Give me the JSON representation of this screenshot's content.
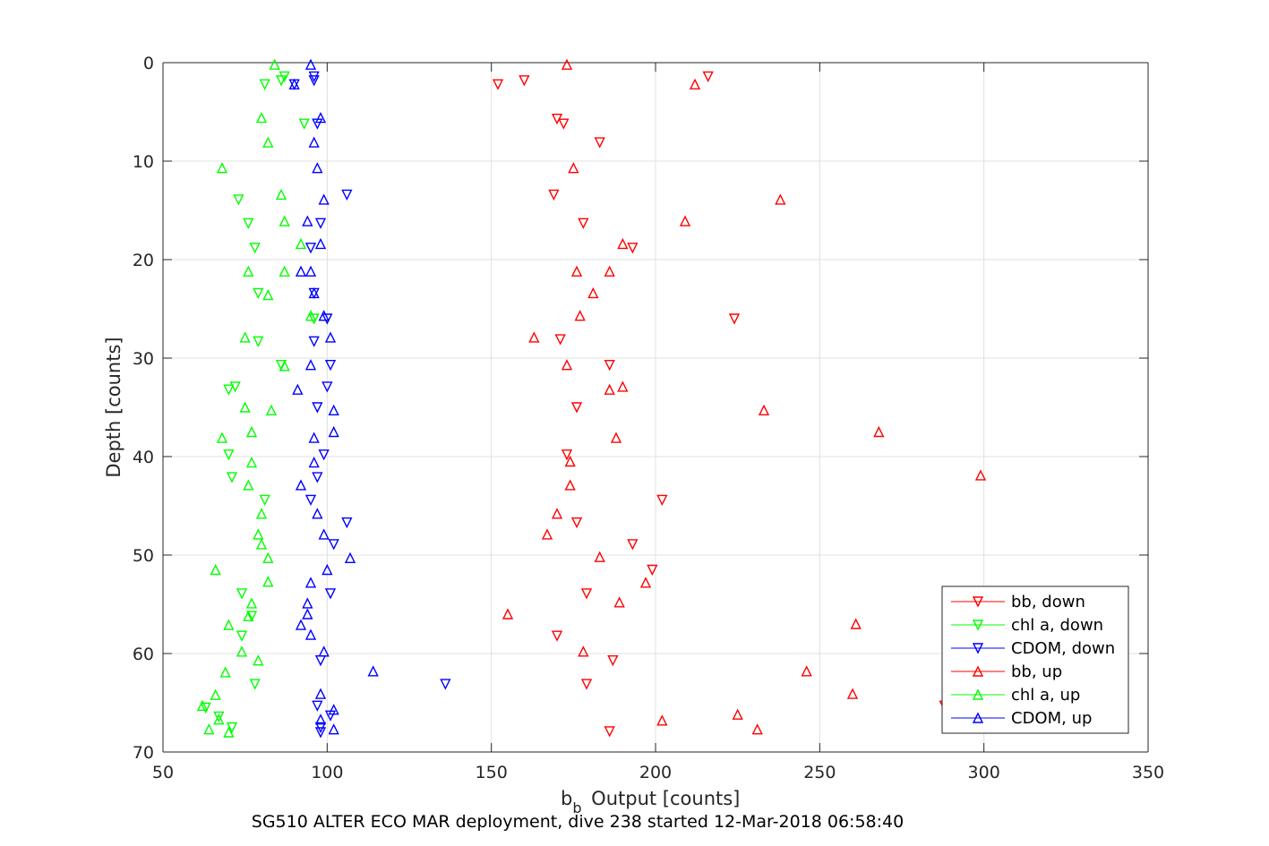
{
  "chart_data": {
    "type": "scatter",
    "title": "",
    "caption": "SG510 ALTER ECO MAR deployment, dive 238 started 12-Mar-2018 06:58:40",
    "xlabel_main": "b",
    "xlabel_sub": "b",
    "xlabel_rest": " Output [counts]",
    "ylabel": "Depth [counts]",
    "xlim": [
      50,
      350
    ],
    "ylim": [
      0,
      70
    ],
    "y_reversed": true,
    "grid": true,
    "legend_position": "bottom-right",
    "xticks": [
      50,
      100,
      150,
      200,
      250,
      300,
      350
    ],
    "yticks": [
      0,
      10,
      20,
      30,
      40,
      50,
      60,
      70
    ],
    "series": [
      {
        "name": "bb, down",
        "color": "#ff0000",
        "marker": "triangle-down",
        "points": [
          [
            216,
            1.4
          ],
          [
            160,
            1.8
          ],
          [
            152,
            2.2
          ],
          [
            170,
            5.7
          ],
          [
            172,
            6.2
          ],
          [
            183,
            8.1
          ],
          [
            169,
            13.4
          ],
          [
            178,
            16.3
          ],
          [
            193,
            18.8
          ],
          [
            224,
            26
          ],
          [
            171,
            28.1
          ],
          [
            186,
            30.7
          ],
          [
            176,
            35
          ],
          [
            173,
            39.8
          ],
          [
            202,
            44.4
          ],
          [
            176,
            46.7
          ],
          [
            193,
            48.9
          ],
          [
            199,
            51.5
          ],
          [
            179,
            53.9
          ],
          [
            170,
            58.2
          ],
          [
            187,
            60.7
          ],
          [
            179,
            63.1
          ],
          [
            288,
            65.3
          ],
          [
            186,
            67.9
          ]
        ]
      },
      {
        "name": "chl a, down",
        "color": "#00ff00",
        "marker": "triangle-down",
        "points": [
          [
            87,
            1.4
          ],
          [
            86,
            1.8
          ],
          [
            81,
            2.2
          ],
          [
            93,
            6.2
          ],
          [
            73,
            13.9
          ],
          [
            76,
            16.3
          ],
          [
            78,
            18.8
          ],
          [
            79,
            23.4
          ],
          [
            96,
            26
          ],
          [
            79,
            28.3
          ],
          [
            86,
            30.7
          ],
          [
            72,
            32.9
          ],
          [
            70,
            33.2
          ],
          [
            70,
            39.8
          ],
          [
            71,
            42.1
          ],
          [
            81,
            44.4
          ],
          [
            74,
            53.9
          ],
          [
            77,
            56.2
          ],
          [
            74,
            58.2
          ],
          [
            78,
            63.1
          ],
          [
            63,
            65.5
          ],
          [
            67,
            66.4
          ],
          [
            71,
            67.5
          ]
        ]
      },
      {
        "name": "CDOM, down",
        "color": "#0000ff",
        "marker": "triangle-down",
        "points": [
          [
            96,
            1.4
          ],
          [
            96,
            1.8
          ],
          [
            90,
            2.2
          ],
          [
            97,
            6.2
          ],
          [
            106,
            13.4
          ],
          [
            98,
            16.3
          ],
          [
            95,
            18.8
          ],
          [
            96,
            23.4
          ],
          [
            100,
            26
          ],
          [
            96,
            28.3
          ],
          [
            101,
            30.7
          ],
          [
            100,
            32.9
          ],
          [
            97,
            35
          ],
          [
            99,
            39.8
          ],
          [
            97,
            42.1
          ],
          [
            95,
            44.4
          ],
          [
            106,
            46.7
          ],
          [
            102,
            48.9
          ],
          [
            101,
            53.9
          ],
          [
            98,
            60.7
          ],
          [
            136,
            63.1
          ],
          [
            97,
            65.3
          ],
          [
            101,
            66.3
          ],
          [
            98,
            67.5
          ],
          [
            98,
            68
          ]
        ]
      },
      {
        "name": "bb, up",
        "color": "#ff0000",
        "marker": "triangle-up",
        "points": [
          [
            173,
            0.2
          ],
          [
            212,
            2.2
          ],
          [
            175,
            10.7
          ],
          [
            238,
            13.9
          ],
          [
            209,
            16.1
          ],
          [
            190,
            18.4
          ],
          [
            176,
            21.2
          ],
          [
            186,
            21.2
          ],
          [
            181,
            23.4
          ],
          [
            177,
            25.7
          ],
          [
            163,
            27.9
          ],
          [
            173,
            30.7
          ],
          [
            190,
            32.9
          ],
          [
            186,
            33.2
          ],
          [
            233,
            35.3
          ],
          [
            268,
            37.5
          ],
          [
            188,
            38.1
          ],
          [
            174,
            40.5
          ],
          [
            174,
            42.9
          ],
          [
            170,
            45.8
          ],
          [
            167,
            47.9
          ],
          [
            183,
            50.2
          ],
          [
            197,
            52.8
          ],
          [
            155,
            56
          ],
          [
            189,
            54.8
          ],
          [
            261,
            57
          ],
          [
            178,
            59.8
          ],
          [
            246,
            61.8
          ],
          [
            260,
            64.1
          ],
          [
            225,
            66.2
          ],
          [
            202,
            66.8
          ],
          [
            231,
            67.7
          ],
          [
            299,
            41.9
          ]
        ]
      },
      {
        "name": "chl a, up",
        "color": "#00ff00",
        "marker": "triangle-up",
        "points": [
          [
            84,
            0.2
          ],
          [
            80,
            5.6
          ],
          [
            82,
            8.1
          ],
          [
            68,
            10.7
          ],
          [
            86,
            13.4
          ],
          [
            87,
            16.1
          ],
          [
            92,
            18.4
          ],
          [
            76,
            21.2
          ],
          [
            87,
            21.2
          ],
          [
            82,
            23.6
          ],
          [
            95,
            25.7
          ],
          [
            75,
            27.9
          ],
          [
            87,
            30.8
          ],
          [
            75,
            35
          ],
          [
            83,
            35.3
          ],
          [
            77,
            37.5
          ],
          [
            68,
            38.1
          ],
          [
            77,
            40.6
          ],
          [
            76,
            42.9
          ],
          [
            80,
            45.8
          ],
          [
            79,
            47.9
          ],
          [
            80,
            48.9
          ],
          [
            82,
            50.3
          ],
          [
            66,
            51.5
          ],
          [
            82,
            52.7
          ],
          [
            77,
            54.9
          ],
          [
            76,
            56.2
          ],
          [
            70,
            57.1
          ],
          [
            74,
            59.8
          ],
          [
            79,
            60.7
          ],
          [
            69,
            61.9
          ],
          [
            66,
            64.2
          ],
          [
            62,
            65.3
          ],
          [
            67,
            66.7
          ],
          [
            64,
            67.7
          ],
          [
            70,
            68
          ]
        ]
      },
      {
        "name": "CDOM, up",
        "color": "#0000ff",
        "marker": "triangle-up",
        "points": [
          [
            95,
            0.2
          ],
          [
            90,
            2.2
          ],
          [
            98,
            5.6
          ],
          [
            96,
            8.1
          ],
          [
            97,
            10.7
          ],
          [
            99,
            13.9
          ],
          [
            94,
            16.1
          ],
          [
            98,
            18.4
          ],
          [
            92,
            21.2
          ],
          [
            95,
            21.2
          ],
          [
            96,
            23.4
          ],
          [
            99,
            25.7
          ],
          [
            101,
            27.9
          ],
          [
            95,
            30.7
          ],
          [
            91,
            33.2
          ],
          [
            102,
            35.3
          ],
          [
            102,
            37.5
          ],
          [
            96,
            38.1
          ],
          [
            96,
            40.6
          ],
          [
            92,
            42.9
          ],
          [
            97,
            45.8
          ],
          [
            99,
            47.9
          ],
          [
            107,
            50.3
          ],
          [
            100,
            51.5
          ],
          [
            95,
            52.8
          ],
          [
            94,
            54.9
          ],
          [
            94,
            56
          ],
          [
            92,
            57.1
          ],
          [
            95,
            58.1
          ],
          [
            99,
            59.8
          ],
          [
            114,
            61.8
          ],
          [
            98,
            64.1
          ],
          [
            102,
            65.7
          ],
          [
            98,
            66.7
          ],
          [
            102,
            67.7
          ]
        ]
      }
    ]
  }
}
